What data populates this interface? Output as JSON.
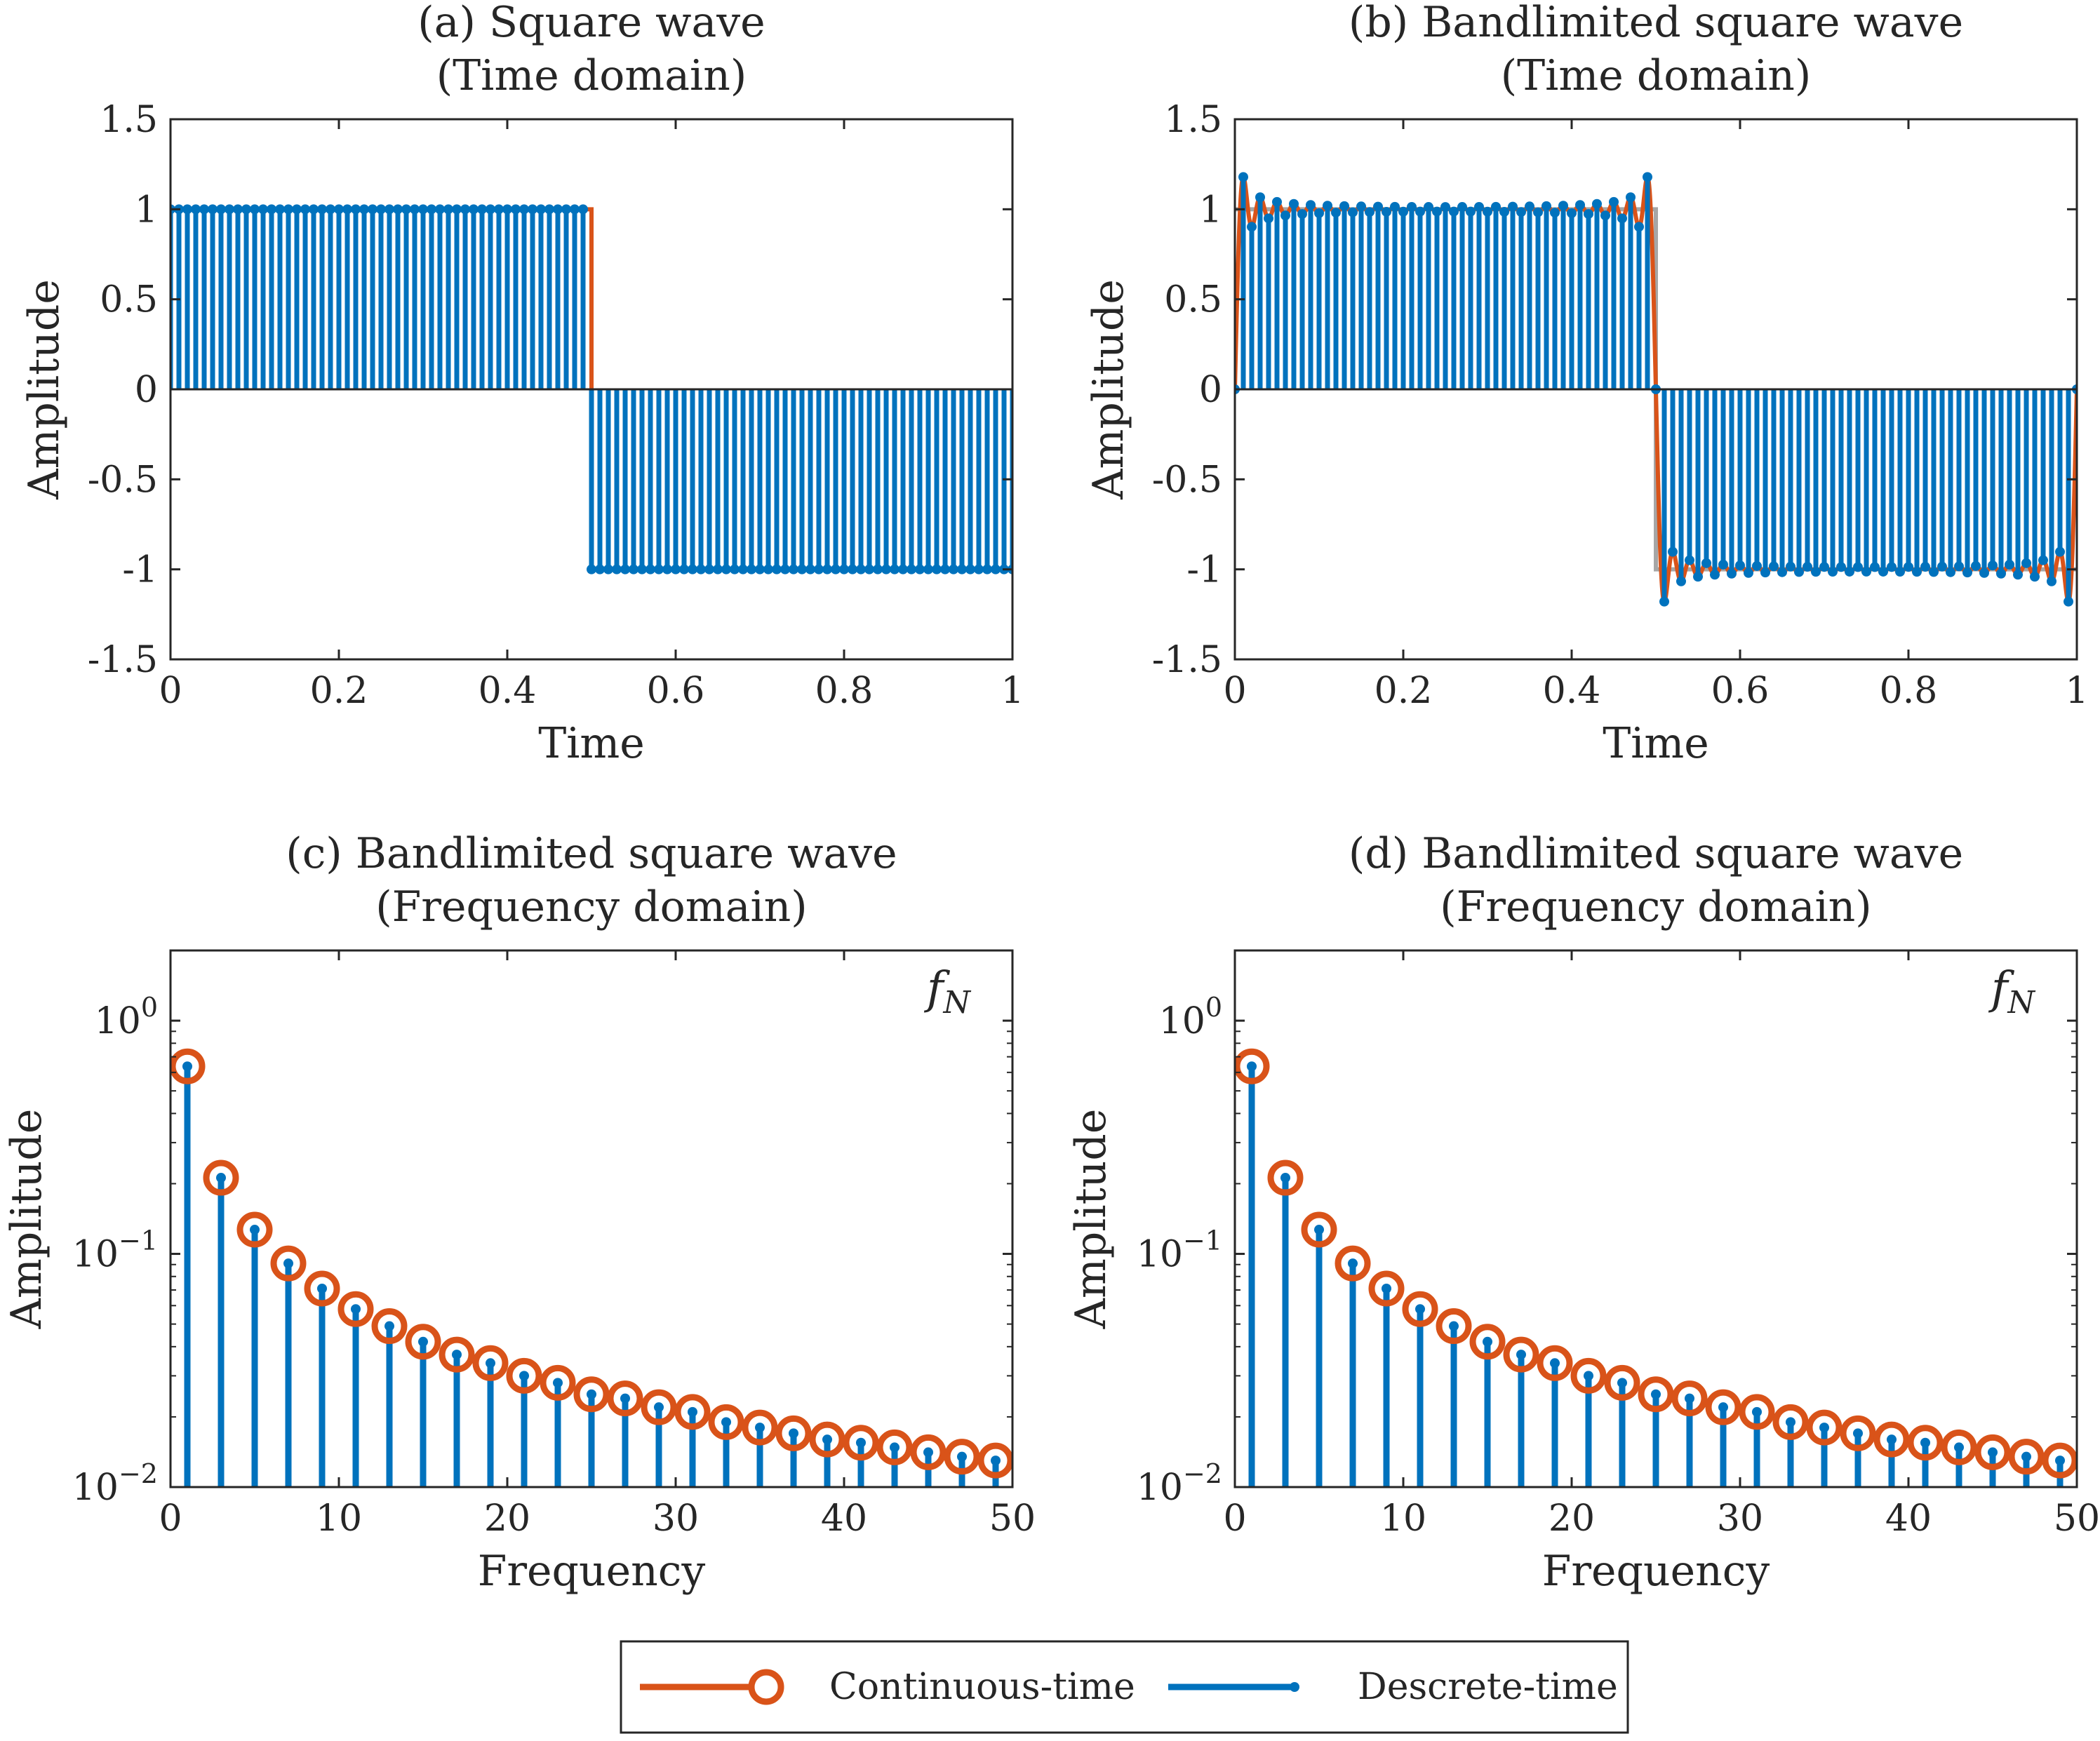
{
  "colors": {
    "continuous": "#d95319",
    "discrete": "#0072bd",
    "ideal_square": "#a6a6a6",
    "axes": "#262626",
    "background": "#ffffff"
  },
  "legend": {
    "entries": [
      {
        "label": "Continuous-time",
        "series": "continuous",
        "marker": "circle",
        "color": "#d95319"
      },
      {
        "label": "Descrete-time",
        "series": "discrete",
        "marker": "dot",
        "color": "#0072bd"
      }
    ]
  },
  "chart_data": [
    {
      "id": "a",
      "type": "line",
      "title": [
        "(a) Square wave",
        "(Time domain)"
      ],
      "xlabel": "Time",
      "ylabel": "Amplitude",
      "xlim": [
        0,
        1
      ],
      "ylim": [
        -1.5,
        1.5
      ],
      "xticks": [
        0,
        0.2,
        0.4,
        0.6,
        0.8,
        1
      ],
      "xtick_labels": [
        "0",
        "0.2",
        "0.4",
        "0.6",
        "0.8",
        "1"
      ],
      "yticks": [
        1.5,
        1,
        0.5,
        0,
        -0.5,
        -1,
        -1.5
      ],
      "ytick_labels": [
        "1.5",
        "1",
        "0.5",
        "0",
        "-0.5",
        "-1",
        "-1.5"
      ],
      "signal": "square",
      "sample_count": 100,
      "continuous": {
        "points": [
          [
            0,
            1
          ],
          [
            0.5,
            1
          ],
          [
            0.5,
            -1
          ],
          [
            1,
            -1
          ]
        ]
      },
      "grid": false
    },
    {
      "id": "b",
      "type": "line",
      "title": [
        "(b) Bandlimited square wave",
        "(Time domain)"
      ],
      "xlabel": "Time",
      "ylabel": "Amplitude",
      "xlim": [
        0,
        1
      ],
      "ylim": [
        -1.5,
        1.5
      ],
      "xticks": [
        0,
        0.2,
        0.4,
        0.6,
        0.8,
        1
      ],
      "xtick_labels": [
        "0",
        "0.2",
        "0.4",
        "0.6",
        "0.8",
        "1"
      ],
      "yticks": [
        1.5,
        1,
        0.5,
        0,
        -0.5,
        -1,
        -1.5
      ],
      "ytick_labels": [
        "1.5",
        "1",
        "0.5",
        "0",
        "-0.5",
        "-1",
        "-1.5"
      ],
      "signal": "bandlimited_square",
      "harmonics": [
        1,
        3,
        5,
        7,
        9,
        11,
        13,
        15,
        17,
        19,
        21,
        23,
        25,
        27,
        29,
        31,
        33,
        35,
        37,
        39,
        41,
        43,
        45,
        47,
        49
      ],
      "sample_count": 100,
      "grid": false
    },
    {
      "id": "c",
      "type": "stem",
      "title": [
        "(c) Bandlimited square wave",
        "(Frequency domain)"
      ],
      "xlabel": "Frequency",
      "ylabel": "Amplitude",
      "xlim": [
        0,
        50
      ],
      "ylim": [
        0.01,
        2
      ],
      "yscale": "log",
      "xticks": [
        0,
        10,
        20,
        30,
        40,
        50
      ],
      "xtick_labels": [
        "0",
        "10",
        "20",
        "30",
        "40",
        "50"
      ],
      "yticks": [
        1,
        0.1,
        0.01
      ],
      "ytick_labels": [
        [
          "10",
          "0"
        ],
        [
          "10",
          "−1"
        ],
        [
          "10",
          "−2"
        ]
      ],
      "annotation": {
        "text": "f",
        "subscript": "N"
      },
      "x": [
        1,
        3,
        5,
        7,
        9,
        11,
        13,
        15,
        17,
        19,
        21,
        23,
        25,
        27,
        29,
        31,
        33,
        35,
        37,
        39,
        41,
        43,
        45,
        47,
        49
      ],
      "continuous_values": [
        0.637,
        0.212,
        0.127,
        0.091,
        0.071,
        0.058,
        0.049,
        0.042,
        0.037,
        0.034,
        0.03,
        0.028,
        0.025,
        0.024,
        0.022,
        0.021,
        0.019,
        0.018,
        0.017,
        0.016,
        0.0155,
        0.0148,
        0.0141,
        0.0135,
        0.013
      ],
      "discrete_values": [
        0.637,
        0.212,
        0.127,
        0.091,
        0.071,
        0.058,
        0.049,
        0.042,
        0.037,
        0.034,
        0.03,
        0.028,
        0.025,
        0.024,
        0.022,
        0.021,
        0.019,
        0.018,
        0.017,
        0.016,
        0.0155,
        0.0148,
        0.0141,
        0.0135,
        0.013
      ],
      "grid": false
    },
    {
      "id": "d",
      "type": "stem",
      "title": [
        "(d) Bandlimited square wave",
        "(Frequency domain)"
      ],
      "xlabel": "Frequency",
      "ylabel": "Amplitude",
      "xlim": [
        0,
        50
      ],
      "ylim": [
        0.01,
        2
      ],
      "yscale": "log",
      "xticks": [
        0,
        10,
        20,
        30,
        40,
        50
      ],
      "xtick_labels": [
        "0",
        "10",
        "20",
        "30",
        "40",
        "50"
      ],
      "yticks": [
        1,
        0.1,
        0.01
      ],
      "ytick_labels": [
        [
          "10",
          "0"
        ],
        [
          "10",
          "−1"
        ],
        [
          "10",
          "−2"
        ]
      ],
      "annotation": {
        "text": "f",
        "subscript": "N"
      },
      "x": [
        1,
        3,
        5,
        7,
        9,
        11,
        13,
        15,
        17,
        19,
        21,
        23,
        25,
        27,
        29,
        31,
        33,
        35,
        37,
        39,
        41,
        43,
        45,
        47,
        49
      ],
      "continuous_values": [
        0.637,
        0.212,
        0.127,
        0.091,
        0.071,
        0.058,
        0.049,
        0.042,
        0.037,
        0.034,
        0.03,
        0.028,
        0.025,
        0.024,
        0.022,
        0.021,
        0.019,
        0.018,
        0.017,
        0.016,
        0.0155,
        0.0148,
        0.0141,
        0.0135,
        0.013
      ],
      "discrete_values": [
        0.637,
        0.212,
        0.127,
        0.091,
        0.071,
        0.058,
        0.049,
        0.042,
        0.037,
        0.034,
        0.03,
        0.028,
        0.025,
        0.024,
        0.022,
        0.021,
        0.019,
        0.018,
        0.017,
        0.016,
        0.0155,
        0.0148,
        0.0141,
        0.0135,
        0.013
      ],
      "grid": false
    }
  ]
}
